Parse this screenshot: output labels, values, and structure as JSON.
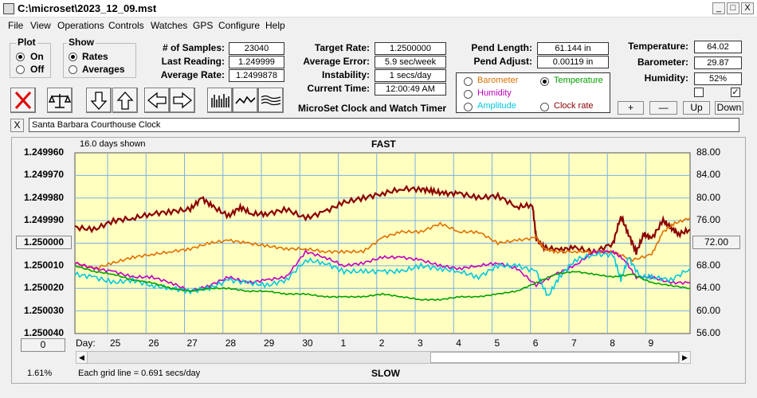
{
  "window": {
    "title": "C:\\microset\\2023_12_09.mst"
  },
  "window_buttons": [
    "_",
    "□",
    "X"
  ],
  "menu": [
    "File",
    "View",
    "Operations",
    "Controls",
    "Watches",
    "GPS",
    "Configure",
    "Help"
  ],
  "plot_group": {
    "label": "Plot",
    "options": [
      "On",
      "Off"
    ],
    "selected": "On"
  },
  "show_group": {
    "label": "Show",
    "options": [
      "Rates",
      "Averages"
    ],
    "selected": "Rates"
  },
  "stats_left": [
    {
      "label": "# of Samples:",
      "value": "23040"
    },
    {
      "label": "Last Reading:",
      "value": "1.249999"
    },
    {
      "label": "Average Rate:",
      "value": "1.2499878"
    }
  ],
  "stats_mid": [
    {
      "label": "Target Rate:",
      "value": "1.2500000"
    },
    {
      "label": "Average Error:",
      "value": "5.9 sec/week"
    },
    {
      "label": "Instability:",
      "value": "1 secs/day"
    },
    {
      "label": "Current Time:",
      "value": "12:00:49 AM"
    }
  ],
  "app_caption": "MicroSet Clock and Watch Timer",
  "pend": [
    {
      "label": "Pend Length:",
      "value": "61.144 in"
    },
    {
      "label": "Pend Adjust:",
      "value": "0.00119 in"
    }
  ],
  "sensor_select": {
    "options": [
      {
        "label": "Barometer",
        "color": "#e07000",
        "selected": false
      },
      {
        "label": "Temperature",
        "color": "#00a000",
        "selected": true
      },
      {
        "label": "Humidity",
        "color": "#c000c0",
        "selected": false
      },
      {
        "label": "Clock rate",
        "color": "#8b0000",
        "selected": false
      },
      {
        "label": "Amplitude",
        "color": "#00c8e0",
        "selected": false
      }
    ]
  },
  "env": [
    {
      "label": "Temperature:",
      "value": "64.02"
    },
    {
      "label": "Barometer:",
      "value": "29.87"
    },
    {
      "label": "Humidity:",
      "value": "52%"
    }
  ],
  "env_checkboxes": [
    false,
    true
  ],
  "adjust_buttons": [
    "+",
    "—",
    "Up",
    "Down"
  ],
  "toolbar_icons": [
    "clear-icon",
    "balance-scale-icon",
    "down-arrow-icon",
    "up-arrow-icon",
    "left-arrow-icon",
    "right-arrow-icon",
    "bars-view-icon",
    "wave-view-icon",
    "lines-view-icon"
  ],
  "clock_name": "Santa Barbara Courthouse Clock",
  "clear_name_btn": "X",
  "plot": {
    "days_shown": "16.0 days shown",
    "top_label": "FAST",
    "bottom_label": "SLOW",
    "grid_note": "Each grid line = 0.691 secs/day",
    "percent": "1.61%",
    "center_value": "1.250000",
    "center_right": "72.00",
    "offset_box": "0",
    "day_prefix": "Day:"
  },
  "chart_data": {
    "type": "line",
    "left_ticks": [
      "1.249960",
      "1.249970",
      "1.249980",
      "1.249990",
      "1.250000",
      "1.250010",
      "1.250020",
      "1.250030",
      "1.250040"
    ],
    "right_ticks": [
      "88.00",
      "84.00",
      "80.00",
      "76.00",
      "72.00",
      "68.00",
      "64.00",
      "60.00",
      "56.00"
    ],
    "ylim_left": [
      1.25004,
      1.24996
    ],
    "ylim_right": [
      56,
      88
    ],
    "days": [
      "25",
      "26",
      "27",
      "28",
      "29",
      "30",
      "1",
      "2",
      "3",
      "4",
      "5",
      "6",
      "7",
      "8",
      "9"
    ],
    "x_start": 24.0,
    "x_end": 40.0,
    "series": [
      {
        "name": "Clock rate",
        "color": "#8b0000",
        "x": [
          24.0,
          24.5,
          25.0,
          25.5,
          26.0,
          26.5,
          27.0,
          27.3,
          27.6,
          28.0,
          28.3,
          28.6,
          29.0,
          29.5,
          30.0,
          30.5,
          31.0,
          31.5,
          32.0,
          32.5,
          33.0,
          33.3,
          33.6,
          34.0,
          34.5,
          35.0,
          35.5,
          35.9,
          36.0,
          36.2,
          36.6,
          37.0,
          37.5,
          38.0,
          38.2,
          38.4,
          38.6,
          38.8,
          39.0,
          39.3,
          39.5,
          39.7,
          40.0
        ],
        "y": [
          1.249993,
          1.249994,
          1.24999,
          1.249989,
          1.249987,
          1.249986,
          1.249985,
          1.24998,
          1.249984,
          1.249988,
          1.249984,
          1.249987,
          1.249987,
          1.249985,
          1.249989,
          1.249986,
          1.249982,
          1.24998,
          1.249978,
          1.249976,
          1.249976,
          1.249977,
          1.249978,
          1.249978,
          1.24998,
          1.249979,
          1.249984,
          1.249983,
          1.249998,
          1.250002,
          1.250003,
          1.250002,
          1.250004,
          1.25,
          1.249988,
          1.249996,
          1.250004,
          1.249996,
          1.249998,
          1.24999,
          1.249993,
          1.249996,
          1.249994
        ]
      },
      {
        "name": "Barometer",
        "color": "#e07000",
        "x": [
          24.0,
          24.5,
          25.0,
          25.5,
          26.0,
          26.5,
          27.0,
          27.5,
          28.0,
          28.5,
          29.0,
          29.5,
          30.0,
          30.5,
          31.0,
          31.5,
          32.0,
          32.5,
          33.0,
          33.5,
          34.0,
          34.5,
          35.0,
          35.5,
          36.0,
          36.2,
          36.5,
          37.0,
          37.5,
          38.0,
          38.5,
          39.0,
          39.3,
          39.6,
          40.0
        ],
        "y": [
          68.5,
          67.5,
          68.5,
          69.5,
          70.0,
          70.5,
          71.0,
          72.0,
          72.5,
          72.0,
          71.5,
          71.0,
          71.0,
          70.5,
          70.5,
          70.5,
          73.0,
          74.0,
          74.0,
          75.5,
          74.0,
          74.0,
          72.0,
          72.5,
          73.0,
          71.0,
          70.5,
          70.5,
          70.5,
          70.5,
          69.0,
          70.0,
          74.0,
          75.5,
          76.5
        ]
      },
      {
        "name": "Humidity",
        "color": "#c000c0",
        "x": [
          24.0,
          24.5,
          25.0,
          25.5,
          26.0,
          26.5,
          27.0,
          27.5,
          28.0,
          28.5,
          29.0,
          29.5,
          30.0,
          30.5,
          31.0,
          31.5,
          32.0,
          32.5,
          33.0,
          33.5,
          34.0,
          34.5,
          35.0,
          35.5,
          36.0,
          36.5,
          37.0,
          37.5,
          38.0,
          38.3,
          38.6,
          39.0,
          39.5,
          40.0
        ],
        "y": [
          68.5,
          67.5,
          67.0,
          66.0,
          66.0,
          65.0,
          63.5,
          64.5,
          66.0,
          65.0,
          65.5,
          66.0,
          70.5,
          69.5,
          68.0,
          68.5,
          69.5,
          69.5,
          69.0,
          68.0,
          67.5,
          68.0,
          68.5,
          67.5,
          64.5,
          66.5,
          68.0,
          70.5,
          70.5,
          69.0,
          66.0,
          66.0,
          65.0,
          65.0
        ]
      },
      {
        "name": "Amplitude",
        "color": "#00c8e0",
        "x": [
          24.0,
          24.5,
          25.0,
          25.5,
          26.0,
          26.5,
          27.0,
          27.5,
          28.0,
          28.5,
          29.0,
          29.5,
          30.0,
          30.5,
          31.0,
          31.5,
          32.0,
          32.5,
          33.0,
          33.5,
          34.0,
          34.5,
          35.0,
          35.5,
          36.0,
          36.3,
          36.6,
          37.0,
          37.5,
          38.0,
          38.2,
          38.4,
          38.7,
          39.0,
          39.5,
          40.0
        ],
        "y": [
          66.5,
          66.0,
          65.0,
          65.5,
          64.5,
          64.0,
          63.5,
          64.0,
          65.5,
          65.0,
          64.5,
          65.5,
          69.0,
          68.5,
          67.0,
          67.0,
          67.0,
          67.0,
          68.0,
          67.5,
          67.0,
          66.0,
          68.0,
          68.0,
          67.0,
          62.5,
          66.0,
          69.0,
          70.0,
          70.0,
          65.5,
          69.5,
          66.0,
          66.0,
          65.5,
          67.5
        ]
      },
      {
        "name": "Temperature",
        "color": "#00a000",
        "x": [
          24.0,
          24.5,
          25.0,
          25.5,
          26.0,
          26.5,
          27.0,
          27.5,
          28.0,
          28.5,
          29.0,
          29.5,
          30.0,
          30.5,
          31.0,
          31.5,
          32.0,
          32.5,
          33.0,
          33.5,
          34.0,
          34.5,
          35.0,
          35.5,
          36.0,
          36.5,
          37.0,
          37.5,
          38.0,
          38.5,
          39.0,
          39.5,
          40.0
        ],
        "y": [
          68.0,
          67.0,
          66.5,
          65.5,
          65.0,
          64.0,
          63.5,
          64.0,
          64.0,
          63.5,
          63.5,
          63.0,
          63.0,
          62.5,
          62.5,
          62.5,
          63.0,
          62.5,
          62.0,
          62.0,
          62.5,
          62.5,
          63.0,
          63.5,
          65.0,
          66.5,
          67.0,
          66.5,
          66.0,
          66.5,
          65.0,
          64.5,
          64.0
        ]
      }
    ]
  }
}
